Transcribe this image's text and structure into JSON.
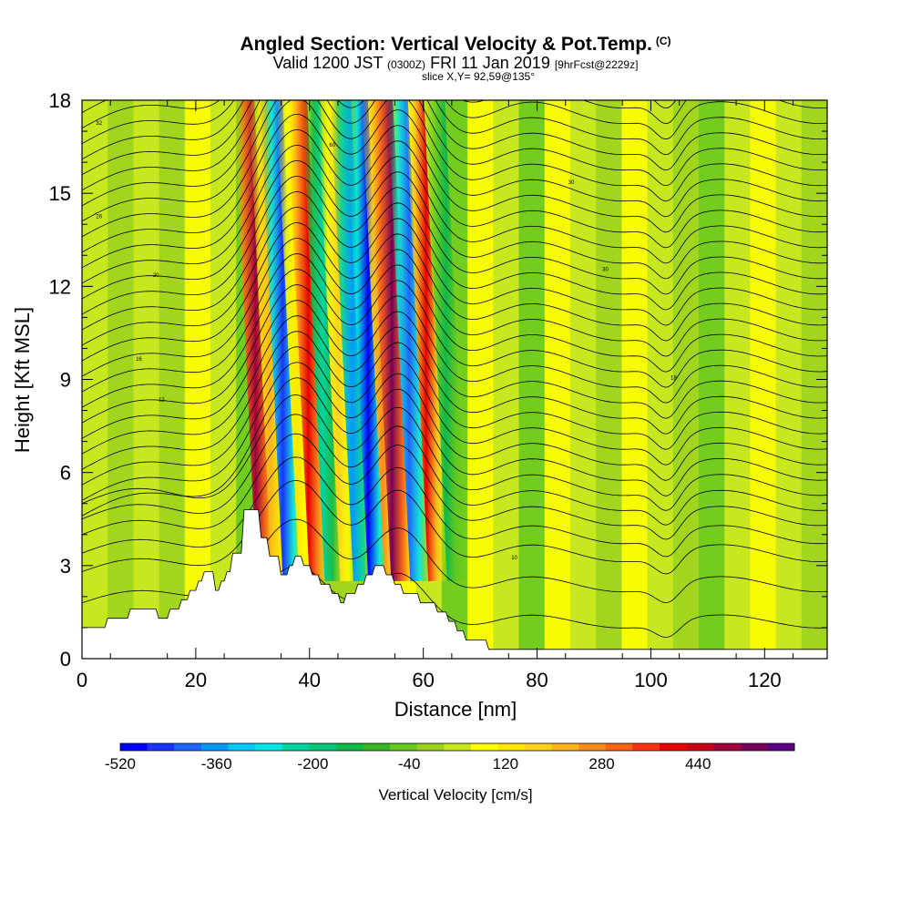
{
  "title": {
    "main": "Angled Section: Vertical Velocity & Pot.Temp.",
    "main_tag": "(C)",
    "valid_prefix": "Valid 1200 JST",
    "valid_zulu": "(0300Z)",
    "valid_date": "FRI 11 Jan 2019",
    "forecast": "[9hrFcst@2229z]",
    "slice": "slice X,Y= 92,59@135°"
  },
  "chart_data": {
    "type": "heatmap",
    "xlabel": "Distance [nm]",
    "ylabel": "Height [Kft MSL]",
    "xlim": [
      0,
      131
    ],
    "ylim": [
      0,
      18
    ],
    "x_ticks": [
      0,
      20,
      40,
      60,
      80,
      100,
      120
    ],
    "y_ticks": [
      0,
      3,
      6,
      9,
      12,
      15,
      18
    ],
    "grid": false,
    "field": "Vertical Velocity [cm/s]",
    "colorbar": {
      "title": "Vertical Velocity [cm/s]",
      "tick_labels": [
        "-520",
        "-360",
        "-200",
        "-40",
        "120",
        "280",
        "440"
      ],
      "tick_values": [
        -520,
        -360,
        -200,
        -40,
        120,
        280,
        440
      ],
      "min": -520,
      "max": 600,
      "colors": [
        "#0000ff",
        "#1a33ff",
        "#1f66ff",
        "#0099ff",
        "#00c8ff",
        "#00e6e6",
        "#00d4a0",
        "#00c878",
        "#10b94a",
        "#3cb428",
        "#64c81e",
        "#9bd21e",
        "#c8e61e",
        "#ffff00",
        "#ffe600",
        "#ffd21e",
        "#ffb41e",
        "#ff8c1e",
        "#ff6414",
        "#ff3214",
        "#e60000",
        "#c80014",
        "#a0003c",
        "#78005a",
        "#5a0082"
      ]
    },
    "velocity_bands": [
      {
        "x": 32.5,
        "w": 2.0,
        "value": 480
      },
      {
        "x": 35.0,
        "w": 1.8,
        "value": 200
      },
      {
        "x": 37.3,
        "w": 2.2,
        "value": -450
      },
      {
        "x": 39.8,
        "w": 1.8,
        "value": 120
      },
      {
        "x": 41.8,
        "w": 2.0,
        "value": 420
      },
      {
        "x": 44.3,
        "w": 1.8,
        "value": -250
      },
      {
        "x": 47.0,
        "w": 1.8,
        "value": 160
      },
      {
        "x": 49.5,
        "w": 2.0,
        "value": -360
      },
      {
        "x": 52.3,
        "w": 2.2,
        "value": -480
      },
      {
        "x": 54.8,
        "w": 1.8,
        "value": 280
      },
      {
        "x": 56.5,
        "w": 2.4,
        "value": 520
      },
      {
        "x": 59.5,
        "w": 2.0,
        "value": -420
      },
      {
        "x": 62.5,
        "w": 1.8,
        "value": 380
      },
      {
        "x": 66.0,
        "w": 2.0,
        "value": -120
      }
    ],
    "terrain": [
      {
        "x": 0,
        "h": 1.0
      },
      {
        "x": 4,
        "h": 1.0
      },
      {
        "x": 4.5,
        "h": 1.3
      },
      {
        "x": 8,
        "h": 1.3
      },
      {
        "x": 8.5,
        "h": 1.6
      },
      {
        "x": 13,
        "h": 1.6
      },
      {
        "x": 13.5,
        "h": 1.3
      },
      {
        "x": 15,
        "h": 1.3
      },
      {
        "x": 15.5,
        "h": 1.6
      },
      {
        "x": 17,
        "h": 1.6
      },
      {
        "x": 17.5,
        "h": 1.9
      },
      {
        "x": 18.5,
        "h": 1.9
      },
      {
        "x": 19,
        "h": 2.2
      },
      {
        "x": 20,
        "h": 2.2
      },
      {
        "x": 20.5,
        "h": 2.5
      },
      {
        "x": 21,
        "h": 2.5
      },
      {
        "x": 21.5,
        "h": 2.8
      },
      {
        "x": 23,
        "h": 2.8
      },
      {
        "x": 23.5,
        "h": 2.2
      },
      {
        "x": 24,
        "h": 2.2
      },
      {
        "x": 24.5,
        "h": 2.5
      },
      {
        "x": 25,
        "h": 2.5
      },
      {
        "x": 25.5,
        "h": 2.8
      },
      {
        "x": 26,
        "h": 2.8
      },
      {
        "x": 26.5,
        "h": 3.4
      },
      {
        "x": 28,
        "h": 3.4
      },
      {
        "x": 28.5,
        "h": 4.8
      },
      {
        "x": 31,
        "h": 4.8
      },
      {
        "x": 31.5,
        "h": 3.9
      },
      {
        "x": 32.5,
        "h": 3.9
      },
      {
        "x": 33,
        "h": 3.3
      },
      {
        "x": 34.5,
        "h": 3.3
      },
      {
        "x": 35,
        "h": 2.7
      },
      {
        "x": 36,
        "h": 2.7
      },
      {
        "x": 36.5,
        "h": 3.0
      },
      {
        "x": 37,
        "h": 3.0
      },
      {
        "x": 37.5,
        "h": 3.3
      },
      {
        "x": 38.5,
        "h": 3.3
      },
      {
        "x": 39,
        "h": 3.0
      },
      {
        "x": 40,
        "h": 3.0
      },
      {
        "x": 40.5,
        "h": 2.7
      },
      {
        "x": 41.5,
        "h": 2.7
      },
      {
        "x": 42,
        "h": 2.4
      },
      {
        "x": 43.5,
        "h": 2.4
      },
      {
        "x": 44,
        "h": 2.1
      },
      {
        "x": 45,
        "h": 2.1
      },
      {
        "x": 45.5,
        "h": 1.8
      },
      {
        "x": 46,
        "h": 1.8
      },
      {
        "x": 46.5,
        "h": 2.1
      },
      {
        "x": 48,
        "h": 2.1
      },
      {
        "x": 48.5,
        "h": 2.4
      },
      {
        "x": 49.5,
        "h": 2.4
      },
      {
        "x": 50,
        "h": 2.7
      },
      {
        "x": 51,
        "h": 2.7
      },
      {
        "x": 51.5,
        "h": 3.0
      },
      {
        "x": 53,
        "h": 3.0
      },
      {
        "x": 53.5,
        "h": 2.7
      },
      {
        "x": 54.5,
        "h": 2.7
      },
      {
        "x": 55,
        "h": 2.4
      },
      {
        "x": 56,
        "h": 2.4
      },
      {
        "x": 56.5,
        "h": 2.1
      },
      {
        "x": 59,
        "h": 2.1
      },
      {
        "x": 59.5,
        "h": 1.8
      },
      {
        "x": 62,
        "h": 1.8
      },
      {
        "x": 62.5,
        "h": 1.5
      },
      {
        "x": 64,
        "h": 1.5
      },
      {
        "x": 64.5,
        "h": 1.2
      },
      {
        "x": 65.5,
        "h": 1.2
      },
      {
        "x": 66,
        "h": 0.9
      },
      {
        "x": 67,
        "h": 0.9
      },
      {
        "x": 67.5,
        "h": 0.6
      },
      {
        "x": 71,
        "h": 0.6
      },
      {
        "x": 71.5,
        "h": 0.3
      },
      {
        "x": 131,
        "h": 0.3
      }
    ],
    "isentropes": {
      "base_heights": [
        1.2,
        2.4,
        3.4,
        4.0,
        4.6,
        5.1,
        5.6,
        6.1,
        6.6,
        7.1,
        7.6,
        8.1,
        8.6,
        9.1,
        9.6,
        10.1,
        10.6,
        11.1,
        11.6,
        12.1,
        12.6,
        13.1,
        13.6,
        14.1,
        14.6,
        15.1,
        15.6,
        16.1,
        16.6,
        17.1,
        17.6,
        18.1,
        18.6,
        19.1
      ],
      "labels": [
        {
          "x": 3,
          "y": 17.2,
          "text": "32"
        },
        {
          "x": 3,
          "y": 14.2,
          "text": "26"
        },
        {
          "x": 13,
          "y": 12.3,
          "text": "20"
        },
        {
          "x": 10,
          "y": 9.6,
          "text": "16"
        },
        {
          "x": 14,
          "y": 8.3,
          "text": "12"
        },
        {
          "x": 44,
          "y": 16.5,
          "text": "60"
        },
        {
          "x": 86,
          "y": 15.3,
          "text": "30"
        },
        {
          "x": 92,
          "y": 12.5,
          "text": "30"
        },
        {
          "x": 104,
          "y": 9.0,
          "text": "18"
        },
        {
          "x": 76,
          "y": 3.2,
          "text": "10"
        }
      ]
    }
  }
}
